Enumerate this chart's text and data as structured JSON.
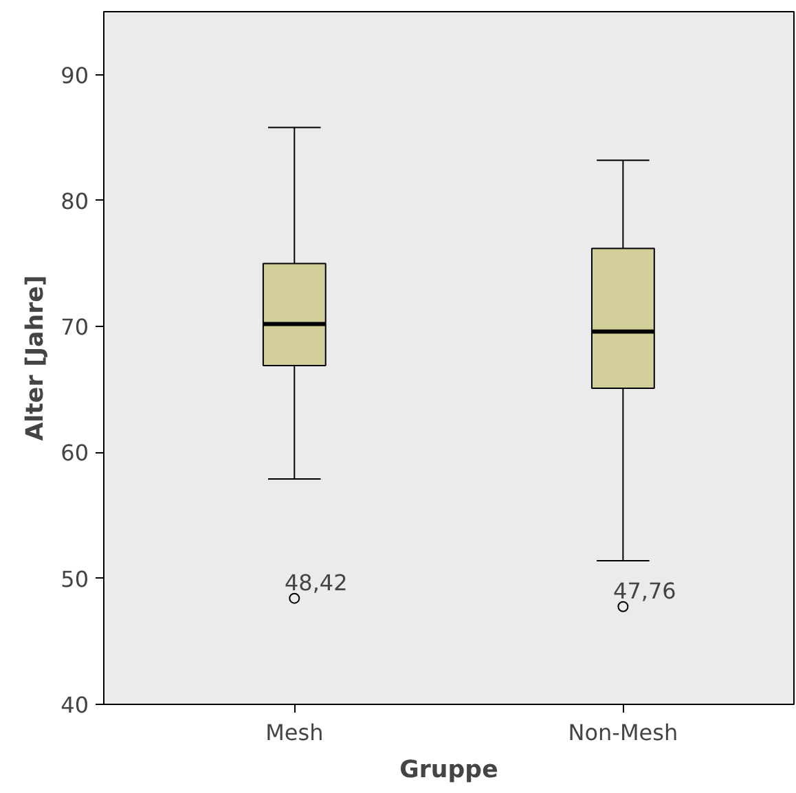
{
  "chart_data": {
    "type": "box",
    "xlabel": "Gruppe",
    "ylabel": "Alter [Jahre]",
    "categories": [
      "Mesh",
      "Non-Mesh"
    ],
    "boxes": [
      {
        "low": 57.9,
        "q1": 66.9,
        "median": 70.2,
        "q3": 75.0,
        "high": 85.8,
        "outliers": [
          48.42
        ]
      },
      {
        "low": 51.4,
        "q1": 65.1,
        "median": 69.6,
        "q3": 76.2,
        "high": 83.2,
        "outliers": [
          47.76
        ]
      }
    ],
    "color": "#d3cf9b",
    "ylim": [
      40,
      95
    ],
    "yticks": [
      40,
      50,
      60,
      70,
      80,
      90
    ],
    "grid": false,
    "marker": "circle",
    "annotations": [
      "48,42",
      "47,76"
    ]
  }
}
